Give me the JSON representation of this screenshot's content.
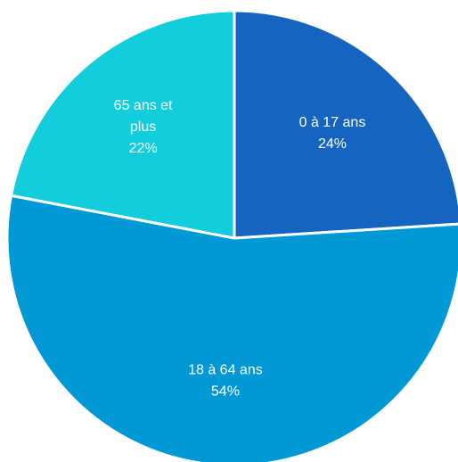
{
  "chart_data": {
    "type": "pie",
    "title": "",
    "slices": [
      {
        "label_lines": [
          "0 à 17 ans"
        ],
        "value": 24,
        "value_label": "24%",
        "color": "#1565C0"
      },
      {
        "label_lines": [
          "18 à 64 ans"
        ],
        "value": 54,
        "value_label": "54%",
        "color": "#0099D6"
      },
      {
        "label_lines": [
          "65 ans et",
          "plus"
        ],
        "value": 22,
        "value_label": "22%",
        "color": "#12CDDC"
      }
    ],
    "start_angle_deg": 0,
    "direction": "clockwise",
    "legend": "none",
    "labels_inside": true,
    "slice_separator_color": "#ffffff"
  }
}
